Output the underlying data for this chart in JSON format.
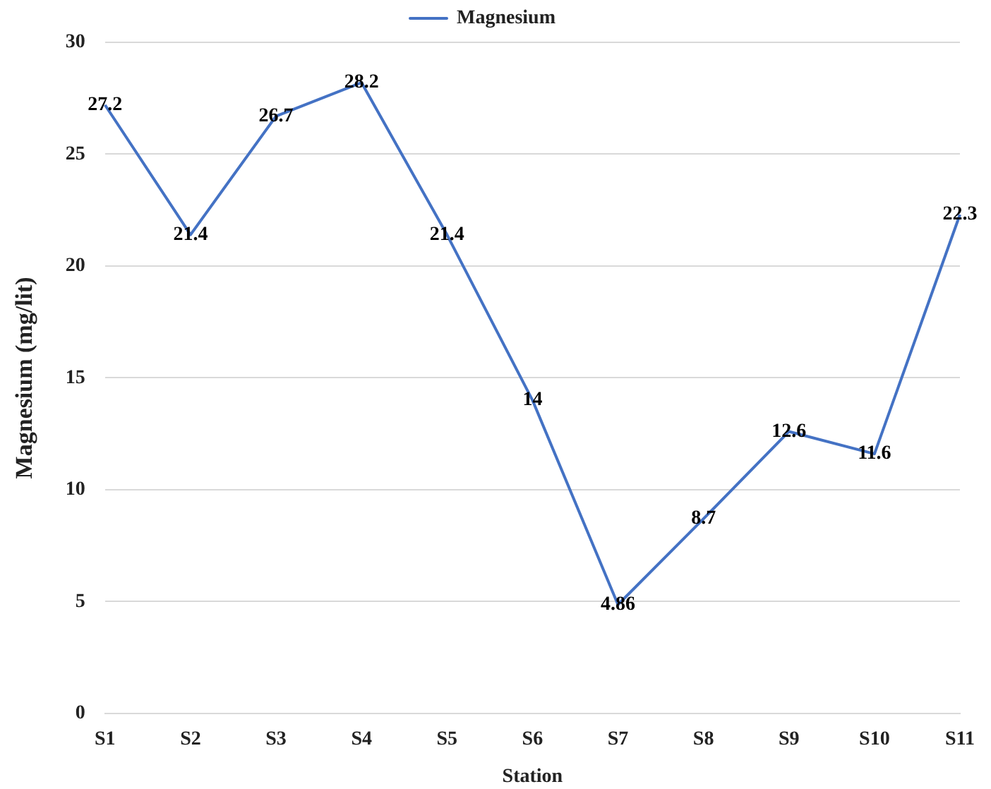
{
  "chart_data": {
    "type": "line",
    "xlabel": "Station",
    "ylabel": "Magnesium (mg/lit)",
    "categories": [
      "S1",
      "S2",
      "S3",
      "S4",
      "S5",
      "S6",
      "S7",
      "S8",
      "S9",
      "S10",
      "S11"
    ],
    "series": [
      {
        "name": "Magnesium",
        "color": "#4472c4",
        "values": [
          27.2,
          21.4,
          26.7,
          28.2,
          21.4,
          14,
          4.86,
          8.7,
          12.6,
          11.6,
          22.3
        ]
      }
    ],
    "ylim": [
      0,
      30
    ],
    "yticks": [
      0,
      5,
      10,
      15,
      20,
      25,
      30
    ],
    "grid": "y",
    "legend": "top",
    "data_labels": true,
    "marker": "none"
  }
}
